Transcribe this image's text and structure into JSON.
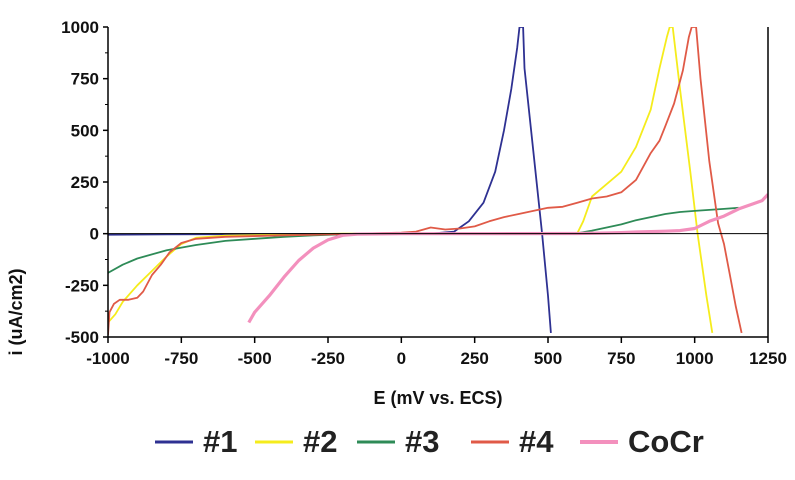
{
  "chart_data": {
    "type": "line",
    "title": "",
    "xlabel": "E (mV vs. ECS)",
    "ylabel": "i (uA/cm2)",
    "xlim": [
      -1000,
      1250
    ],
    "ylim": [
      -500,
      1000
    ],
    "x_ticks": [
      -1000,
      -750,
      -500,
      -250,
      0,
      250,
      500,
      750,
      1000,
      1250
    ],
    "y_ticks": [
      -500,
      -250,
      0,
      250,
      500,
      750,
      1000
    ],
    "grid": false,
    "legend_position": "bottom",
    "series": [
      {
        "name": "#1",
        "color": "#2e3192",
        "points": [
          [
            -1000,
            -5
          ],
          [
            -800,
            -3
          ],
          [
            -500,
            -2
          ],
          [
            -250,
            -1
          ],
          [
            0,
            0
          ],
          [
            100,
            0
          ],
          [
            180,
            10
          ],
          [
            230,
            60
          ],
          [
            280,
            150
          ],
          [
            320,
            300
          ],
          [
            350,
            500
          ],
          [
            375,
            700
          ],
          [
            395,
            900
          ],
          [
            403,
            1000
          ],
          [
            415,
            1000
          ],
          [
            420,
            800
          ],
          [
            450,
            400
          ],
          [
            480,
            0
          ],
          [
            500,
            -300
          ],
          [
            510,
            -480
          ]
        ]
      },
      {
        "name": "#2",
        "color": "#f5ec1c",
        "points": [
          [
            -1000,
            -430
          ],
          [
            -975,
            -390
          ],
          [
            -950,
            -330
          ],
          [
            -900,
            -250
          ],
          [
            -850,
            -180
          ],
          [
            -800,
            -110
          ],
          [
            -750,
            -50
          ],
          [
            -700,
            -20
          ],
          [
            -600,
            -10
          ],
          [
            -400,
            -5
          ],
          [
            -200,
            0
          ],
          [
            0,
            0
          ],
          [
            300,
            0
          ],
          [
            600,
            2
          ],
          [
            620,
            60
          ],
          [
            650,
            180
          ],
          [
            700,
            240
          ],
          [
            750,
            300
          ],
          [
            800,
            420
          ],
          [
            850,
            600
          ],
          [
            880,
            800
          ],
          [
            905,
            950
          ],
          [
            915,
            1000
          ],
          [
            925,
            1000
          ],
          [
            950,
            700
          ],
          [
            985,
            300
          ],
          [
            1010,
            0
          ],
          [
            1040,
            -300
          ],
          [
            1060,
            -480
          ]
        ]
      },
      {
        "name": "#3",
        "color": "#2e8b57",
        "points": [
          [
            -1000,
            -190
          ],
          [
            -950,
            -150
          ],
          [
            -900,
            -120
          ],
          [
            -800,
            -80
          ],
          [
            -700,
            -55
          ],
          [
            -600,
            -35
          ],
          [
            -500,
            -25
          ],
          [
            -400,
            -15
          ],
          [
            -300,
            -8
          ],
          [
            -200,
            -3
          ],
          [
            0,
            0
          ],
          [
            300,
            0
          ],
          [
            600,
            2
          ],
          [
            650,
            15
          ],
          [
            700,
            30
          ],
          [
            750,
            45
          ],
          [
            800,
            65
          ],
          [
            850,
            80
          ],
          [
            900,
            95
          ],
          [
            950,
            105
          ],
          [
            1000,
            110
          ],
          [
            1050,
            115
          ],
          [
            1100,
            120
          ],
          [
            1150,
            125
          ]
        ]
      },
      {
        "name": "#4",
        "color": "#e05a47",
        "points": [
          [
            -1000,
            -490
          ],
          [
            -995,
            -380
          ],
          [
            -980,
            -340
          ],
          [
            -960,
            -320
          ],
          [
            -930,
            -320
          ],
          [
            -900,
            -310
          ],
          [
            -880,
            -280
          ],
          [
            -850,
            -200
          ],
          [
            -820,
            -150
          ],
          [
            -790,
            -90
          ],
          [
            -750,
            -45
          ],
          [
            -700,
            -25
          ],
          [
            -600,
            -15
          ],
          [
            -400,
            -8
          ],
          [
            -200,
            -2
          ],
          [
            0,
            5
          ],
          [
            50,
            10
          ],
          [
            100,
            30
          ],
          [
            150,
            20
          ],
          [
            200,
            25
          ],
          [
            250,
            35
          ],
          [
            300,
            60
          ],
          [
            350,
            80
          ],
          [
            400,
            95
          ],
          [
            450,
            110
          ],
          [
            500,
            125
          ],
          [
            550,
            130
          ],
          [
            600,
            150
          ],
          [
            650,
            170
          ],
          [
            700,
            180
          ],
          [
            750,
            200
          ],
          [
            800,
            260
          ],
          [
            850,
            390
          ],
          [
            880,
            450
          ],
          [
            900,
            520
          ],
          [
            930,
            630
          ],
          [
            960,
            790
          ],
          [
            980,
            950
          ],
          [
            990,
            1000
          ],
          [
            1005,
            1000
          ],
          [
            1020,
            750
          ],
          [
            1050,
            350
          ],
          [
            1080,
            50
          ],
          [
            1100,
            -50
          ],
          [
            1120,
            -200
          ],
          [
            1140,
            -350
          ],
          [
            1160,
            -480
          ]
        ]
      },
      {
        "name": "CoCr",
        "color": "#f390bd",
        "points": [
          [
            -520,
            -430
          ],
          [
            -500,
            -380
          ],
          [
            -450,
            -300
          ],
          [
            -400,
            -210
          ],
          [
            -350,
            -130
          ],
          [
            -300,
            -70
          ],
          [
            -250,
            -30
          ],
          [
            -200,
            -8
          ],
          [
            -150,
            -2
          ],
          [
            0,
            0
          ],
          [
            300,
            0
          ],
          [
            600,
            1
          ],
          [
            700,
            3
          ],
          [
            750,
            5
          ],
          [
            800,
            8
          ],
          [
            850,
            10
          ],
          [
            900,
            12
          ],
          [
            950,
            15
          ],
          [
            1000,
            25
          ],
          [
            1050,
            60
          ],
          [
            1100,
            85
          ],
          [
            1150,
            120
          ],
          [
            1200,
            145
          ],
          [
            1230,
            160
          ],
          [
            1250,
            190
          ]
        ]
      }
    ]
  },
  "colors": {
    "axis": "#000000",
    "background": "#ffffff"
  }
}
